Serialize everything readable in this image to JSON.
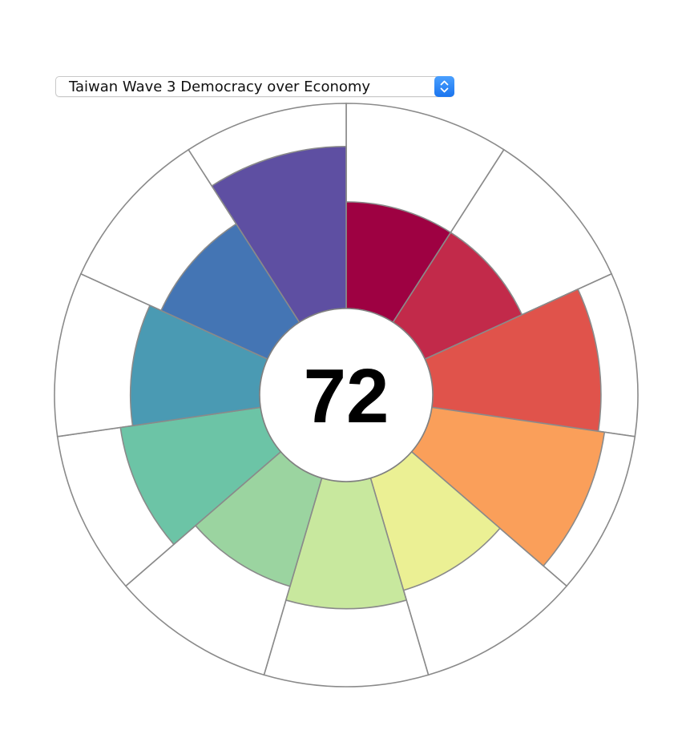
{
  "dropdown": {
    "selected": "Taiwan Wave 3 Democracy over Economy",
    "icon": "chevron-up-down-icon"
  },
  "chart_data": {
    "type": "radial-bar",
    "center_value": "72",
    "max": 100,
    "segments": [
      {
        "value": 52,
        "color": "#9e0142"
      },
      {
        "value": 52,
        "color": "#c22a4a"
      },
      {
        "value": 82,
        "color": "#e0534b"
      },
      {
        "value": 85,
        "color": "#fa9f5a"
      },
      {
        "value": 57,
        "color": "#ebf094"
      },
      {
        "value": 62,
        "color": "#c8e89e"
      },
      {
        "value": 55,
        "color": "#9bd4a0"
      },
      {
        "value": 69,
        "color": "#6cc4a6"
      },
      {
        "value": 63,
        "color": "#4a9ab3"
      },
      {
        "value": 57,
        "color": "#4475b4"
      },
      {
        "value": 79,
        "color": "#5e4fa2"
      }
    ]
  }
}
